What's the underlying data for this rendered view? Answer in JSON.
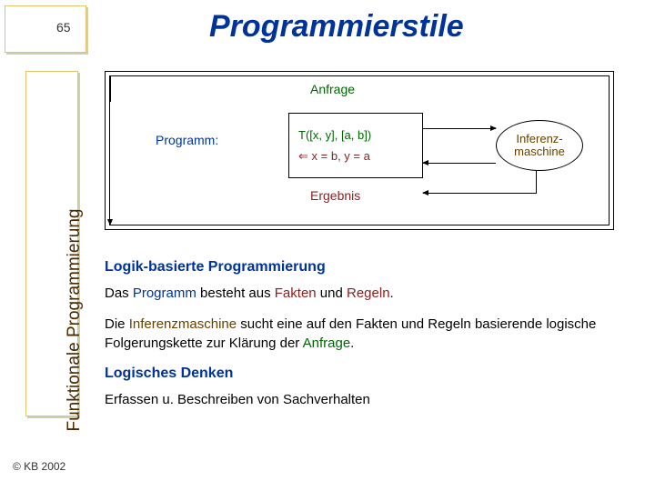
{
  "page": {
    "number": "65",
    "copyright": "© KB 2002"
  },
  "title": "Programmierstile",
  "sidebar": {
    "label": "Funktionale Programmierung"
  },
  "diagram": {
    "anfrage_label": "Anfrage",
    "ergebnis_label": "Ergebnis",
    "programm_label": "Programm:",
    "query_line1": "T([x, y], [a, b])",
    "query_arrow": "⇐",
    "query_line2": "x = b, y = a",
    "inference_label": "Inferenz-\nmaschine",
    "colors": {
      "anfrage": "#006600",
      "ergebnis": "#8a1f1f",
      "programm": "#003399",
      "inference": "#654100",
      "border": "#000000"
    }
  },
  "section": {
    "heading": "Logik-basierte Programmierung",
    "p1_a": "Das ",
    "p1_b": "Programm",
    "p1_c": " besteht aus ",
    "p1_d": "Fakten",
    "p1_e": " und ",
    "p1_f": "Regeln",
    "p1_g": ".",
    "p2_a": "Die ",
    "p2_b": "Inferenzmaschine",
    "p2_c": " sucht eine auf den Fakten und Regeln basierende logische Folgerungskette zur Klärung der ",
    "p2_d": "Anfrage",
    "p2_e": ".",
    "h2": "Logisches Denken",
    "p3": "Erfassen u. Beschreiben von Sachverhalten"
  }
}
